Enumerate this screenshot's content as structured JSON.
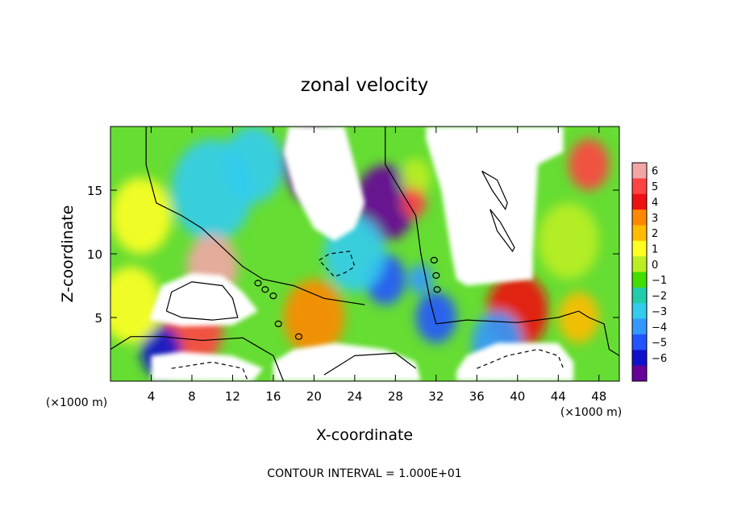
{
  "chart_data": {
    "type": "heatmap",
    "title": "zonal velocity",
    "xlabel": "X-coordinate",
    "ylabel": "Z-coordinate",
    "x_unit_label_left": "(×1000 m)",
    "x_unit_label_right": "(×1000 m)",
    "xlim": [
      0,
      50
    ],
    "ylim": [
      0,
      20
    ],
    "x_ticks": [
      4,
      8,
      12,
      16,
      20,
      24,
      28,
      32,
      36,
      40,
      44,
      48
    ],
    "y_ticks": [
      5,
      10,
      15
    ],
    "colorbar": {
      "range": [
        -6,
        6
      ],
      "ticks": [
        6,
        5,
        4,
        3,
        2,
        1,
        0,
        -1,
        -2,
        -3,
        -4,
        -5,
        -6
      ],
      "colors": [
        "#f2a6a6",
        "#ff4444",
        "#ee1111",
        "#ff8800",
        "#ffbb00",
        "#ffff22",
        "#bbee22",
        "#44dd00",
        "#22ccaa",
        "#33ccee",
        "#3399ff",
        "#2255ff",
        "#1111cc",
        "#660099"
      ]
    },
    "contour_interval_text": "CONTOUR INTERVAL = 1.000E+01",
    "field_blobs": [
      {
        "x": 3,
        "y": 13,
        "v": 1.5,
        "s": 3
      },
      {
        "x": 10,
        "y": 15,
        "v": -1.8,
        "s": 4
      },
      {
        "x": 14,
        "y": 17,
        "v": -2.5,
        "s": 3
      },
      {
        "x": 20,
        "y": 17,
        "v": -5.5,
        "s": 3
      },
      {
        "x": 27,
        "y": 14,
        "v": -5.5,
        "s": 3
      },
      {
        "x": 27,
        "y": 8,
        "v": -4,
        "s": 2
      },
      {
        "x": 30,
        "y": 16,
        "v": 0.5,
        "s": 1.5
      },
      {
        "x": 30.5,
        "y": 8,
        "v": -3,
        "s": 1.2
      },
      {
        "x": 29.8,
        "y": 14,
        "v": 4.8,
        "s": 1.2
      },
      {
        "x": 45,
        "y": 11,
        "v": 0.8,
        "s": 3
      },
      {
        "x": 47,
        "y": 17,
        "v": 5,
        "s": 2
      },
      {
        "x": 10,
        "y": 9,
        "v": 5.5,
        "s": 2.5
      },
      {
        "x": 8,
        "y": 4,
        "v": 4.5,
        "s": 3
      },
      {
        "x": 20,
        "y": 5,
        "v": 3,
        "s": 3
      },
      {
        "x": 5,
        "y": 2.3,
        "v": -4.5,
        "s": 2
      },
      {
        "x": 32,
        "y": 5,
        "v": -4,
        "s": 2
      },
      {
        "x": 40,
        "y": 5.5,
        "v": 3.5,
        "s": 3
      },
      {
        "x": 38,
        "y": 3,
        "v": -3,
        "s": 2.5
      },
      {
        "x": 46,
        "y": 5,
        "v": 2,
        "s": 2
      },
      {
        "x": 2,
        "y": 6,
        "v": 1,
        "s": 3
      },
      {
        "x": 24,
        "y": 10,
        "v": -2,
        "s": 3
      },
      {
        "x": 36,
        "y": 12,
        "v": 2,
        "s": 2
      }
    ],
    "white_regions": [
      {
        "name": "white-region-upper-center",
        "points": [
          [
            17.5,
            20
          ],
          [
            23,
            20
          ],
          [
            24,
            17
          ],
          [
            25,
            14
          ],
          [
            24,
            12
          ],
          [
            22,
            11
          ],
          [
            20,
            12
          ],
          [
            18,
            15
          ],
          [
            17,
            18
          ]
        ]
      },
      {
        "name": "white-region-upper-right",
        "points": [
          [
            31,
            20
          ],
          [
            44.5,
            20
          ],
          [
            44.5,
            18
          ],
          [
            42,
            17
          ],
          [
            41.5,
            10
          ],
          [
            41.5,
            8
          ],
          [
            35,
            7.5
          ],
          [
            34,
            8
          ],
          [
            33.5,
            10
          ],
          [
            32.5,
            15
          ],
          [
            31,
            19
          ]
        ]
      },
      {
        "name": "white-region-left-lobe",
        "points": [
          [
            3.8,
            4.8
          ],
          [
            5,
            7.5
          ],
          [
            8,
            8.5
          ],
          [
            11,
            8.3
          ],
          [
            13,
            7
          ],
          [
            14.5,
            5.5
          ],
          [
            12,
            4.4
          ],
          [
            7,
            4.3
          ]
        ]
      },
      {
        "name": "white-region-bottom-left",
        "points": [
          [
            4,
            0
          ],
          [
            14,
            0
          ],
          [
            15,
            1
          ],
          [
            12,
            2
          ],
          [
            7,
            2.3
          ],
          [
            4,
            2
          ]
        ]
      },
      {
        "name": "white-region-bottom-center",
        "points": [
          [
            16,
            0
          ],
          [
            30.5,
            0
          ],
          [
            30,
            1.5
          ],
          [
            27,
            2.5
          ],
          [
            22,
            3
          ],
          [
            18,
            2.5
          ],
          [
            16,
            1.5
          ]
        ]
      },
      {
        "name": "white-region-bottom-right",
        "points": [
          [
            34,
            0
          ],
          [
            45.5,
            0
          ],
          [
            45.5,
            1.5
          ],
          [
            44,
            3
          ],
          [
            38,
            3
          ],
          [
            35,
            2
          ],
          [
            34,
            0.8
          ]
        ]
      }
    ],
    "contours": [
      {
        "name": "contour-upper-left",
        "style": "solid",
        "points": [
          [
            3.5,
            20
          ],
          [
            3.5,
            17
          ],
          [
            4.5,
            14
          ],
          [
            7,
            13
          ],
          [
            9,
            12
          ],
          [
            11,
            10.5
          ],
          [
            13,
            9
          ],
          [
            15,
            8
          ],
          [
            18,
            7.5
          ],
          [
            21,
            6.5
          ],
          [
            25,
            6
          ]
        ]
      },
      {
        "name": "contour-upper-mid",
        "style": "solid",
        "points": [
          [
            27,
            20
          ],
          [
            27,
            17
          ],
          [
            28.5,
            15
          ],
          [
            30,
            13
          ],
          [
            30.5,
            10
          ],
          [
            31.5,
            6
          ],
          [
            32,
            4.5
          ],
          [
            35,
            4.8
          ],
          [
            40,
            4.6
          ],
          [
            44,
            5
          ],
          [
            46,
            5.5
          ],
          [
            47,
            5
          ],
          [
            48.5,
            4.5
          ],
          [
            49,
            2.5
          ],
          [
            50,
            2
          ]
        ]
      },
      {
        "name": "contour-lower-left",
        "style": "solid",
        "points": [
          [
            0,
            2.5
          ],
          [
            2,
            3.5
          ],
          [
            5,
            3.5
          ],
          [
            9,
            3.2
          ],
          [
            13,
            3.4
          ],
          [
            16,
            2
          ],
          [
            17,
            0
          ]
        ]
      },
      {
        "name": "contour-left-loop",
        "style": "solid",
        "points": [
          [
            5.5,
            5.5
          ],
          [
            6,
            7
          ],
          [
            8,
            7.8
          ],
          [
            11,
            7.5
          ],
          [
            12,
            6.5
          ],
          [
            12.5,
            5
          ],
          [
            10,
            4.8
          ],
          [
            7,
            5
          ],
          [
            5.5,
            5.5
          ]
        ]
      },
      {
        "name": "contour-dashed-mid",
        "style": "dashed",
        "points": [
          [
            20.5,
            9.5
          ],
          [
            21.5,
            10
          ],
          [
            23.5,
            10.2
          ],
          [
            24,
            9
          ],
          [
            23,
            8.5
          ],
          [
            22,
            8.2
          ],
          [
            20.5,
            9.5
          ]
        ]
      },
      {
        "name": "contour-ellipse-1",
        "style": "solid",
        "points": [
          [
            36.5,
            16.5
          ],
          [
            38,
            15.8
          ],
          [
            39,
            14
          ],
          [
            38.8,
            13.5
          ],
          [
            37.5,
            15
          ],
          [
            36.5,
            16.5
          ]
        ]
      },
      {
        "name": "contour-ellipse-2",
        "style": "solid",
        "points": [
          [
            37.3,
            13.5
          ],
          [
            38.3,
            12.5
          ],
          [
            39.7,
            10.5
          ],
          [
            39.5,
            10.2
          ],
          [
            38,
            11.8
          ],
          [
            37.3,
            13.5
          ]
        ]
      },
      {
        "name": "contour-dashed-bottom",
        "style": "dashed",
        "points": [
          [
            6,
            1
          ],
          [
            10,
            1.5
          ],
          [
            13,
            1
          ],
          [
            13.5,
            0
          ]
        ]
      },
      {
        "name": "contour-dashed-bottom-right",
        "style": "dashed",
        "points": [
          [
            36,
            1
          ],
          [
            39,
            2
          ],
          [
            42,
            2.5
          ],
          [
            44,
            2
          ],
          [
            44.5,
            1
          ]
        ]
      },
      {
        "name": "contour-bottom-center",
        "style": "solid",
        "points": [
          [
            21,
            0.5
          ],
          [
            24,
            2
          ],
          [
            28,
            2.2
          ],
          [
            30,
            1
          ]
        ]
      }
    ],
    "small_contour_loops": [
      {
        "x": 14.5,
        "y": 7.7
      },
      {
        "x": 15.2,
        "y": 7.2
      },
      {
        "x": 16,
        "y": 6.7
      },
      {
        "x": 31.8,
        "y": 9.5
      },
      {
        "x": 32,
        "y": 8.3
      },
      {
        "x": 32.1,
        "y": 7.2
      },
      {
        "x": 16.5,
        "y": 4.5
      },
      {
        "x": 18.5,
        "y": 3.5
      }
    ]
  }
}
